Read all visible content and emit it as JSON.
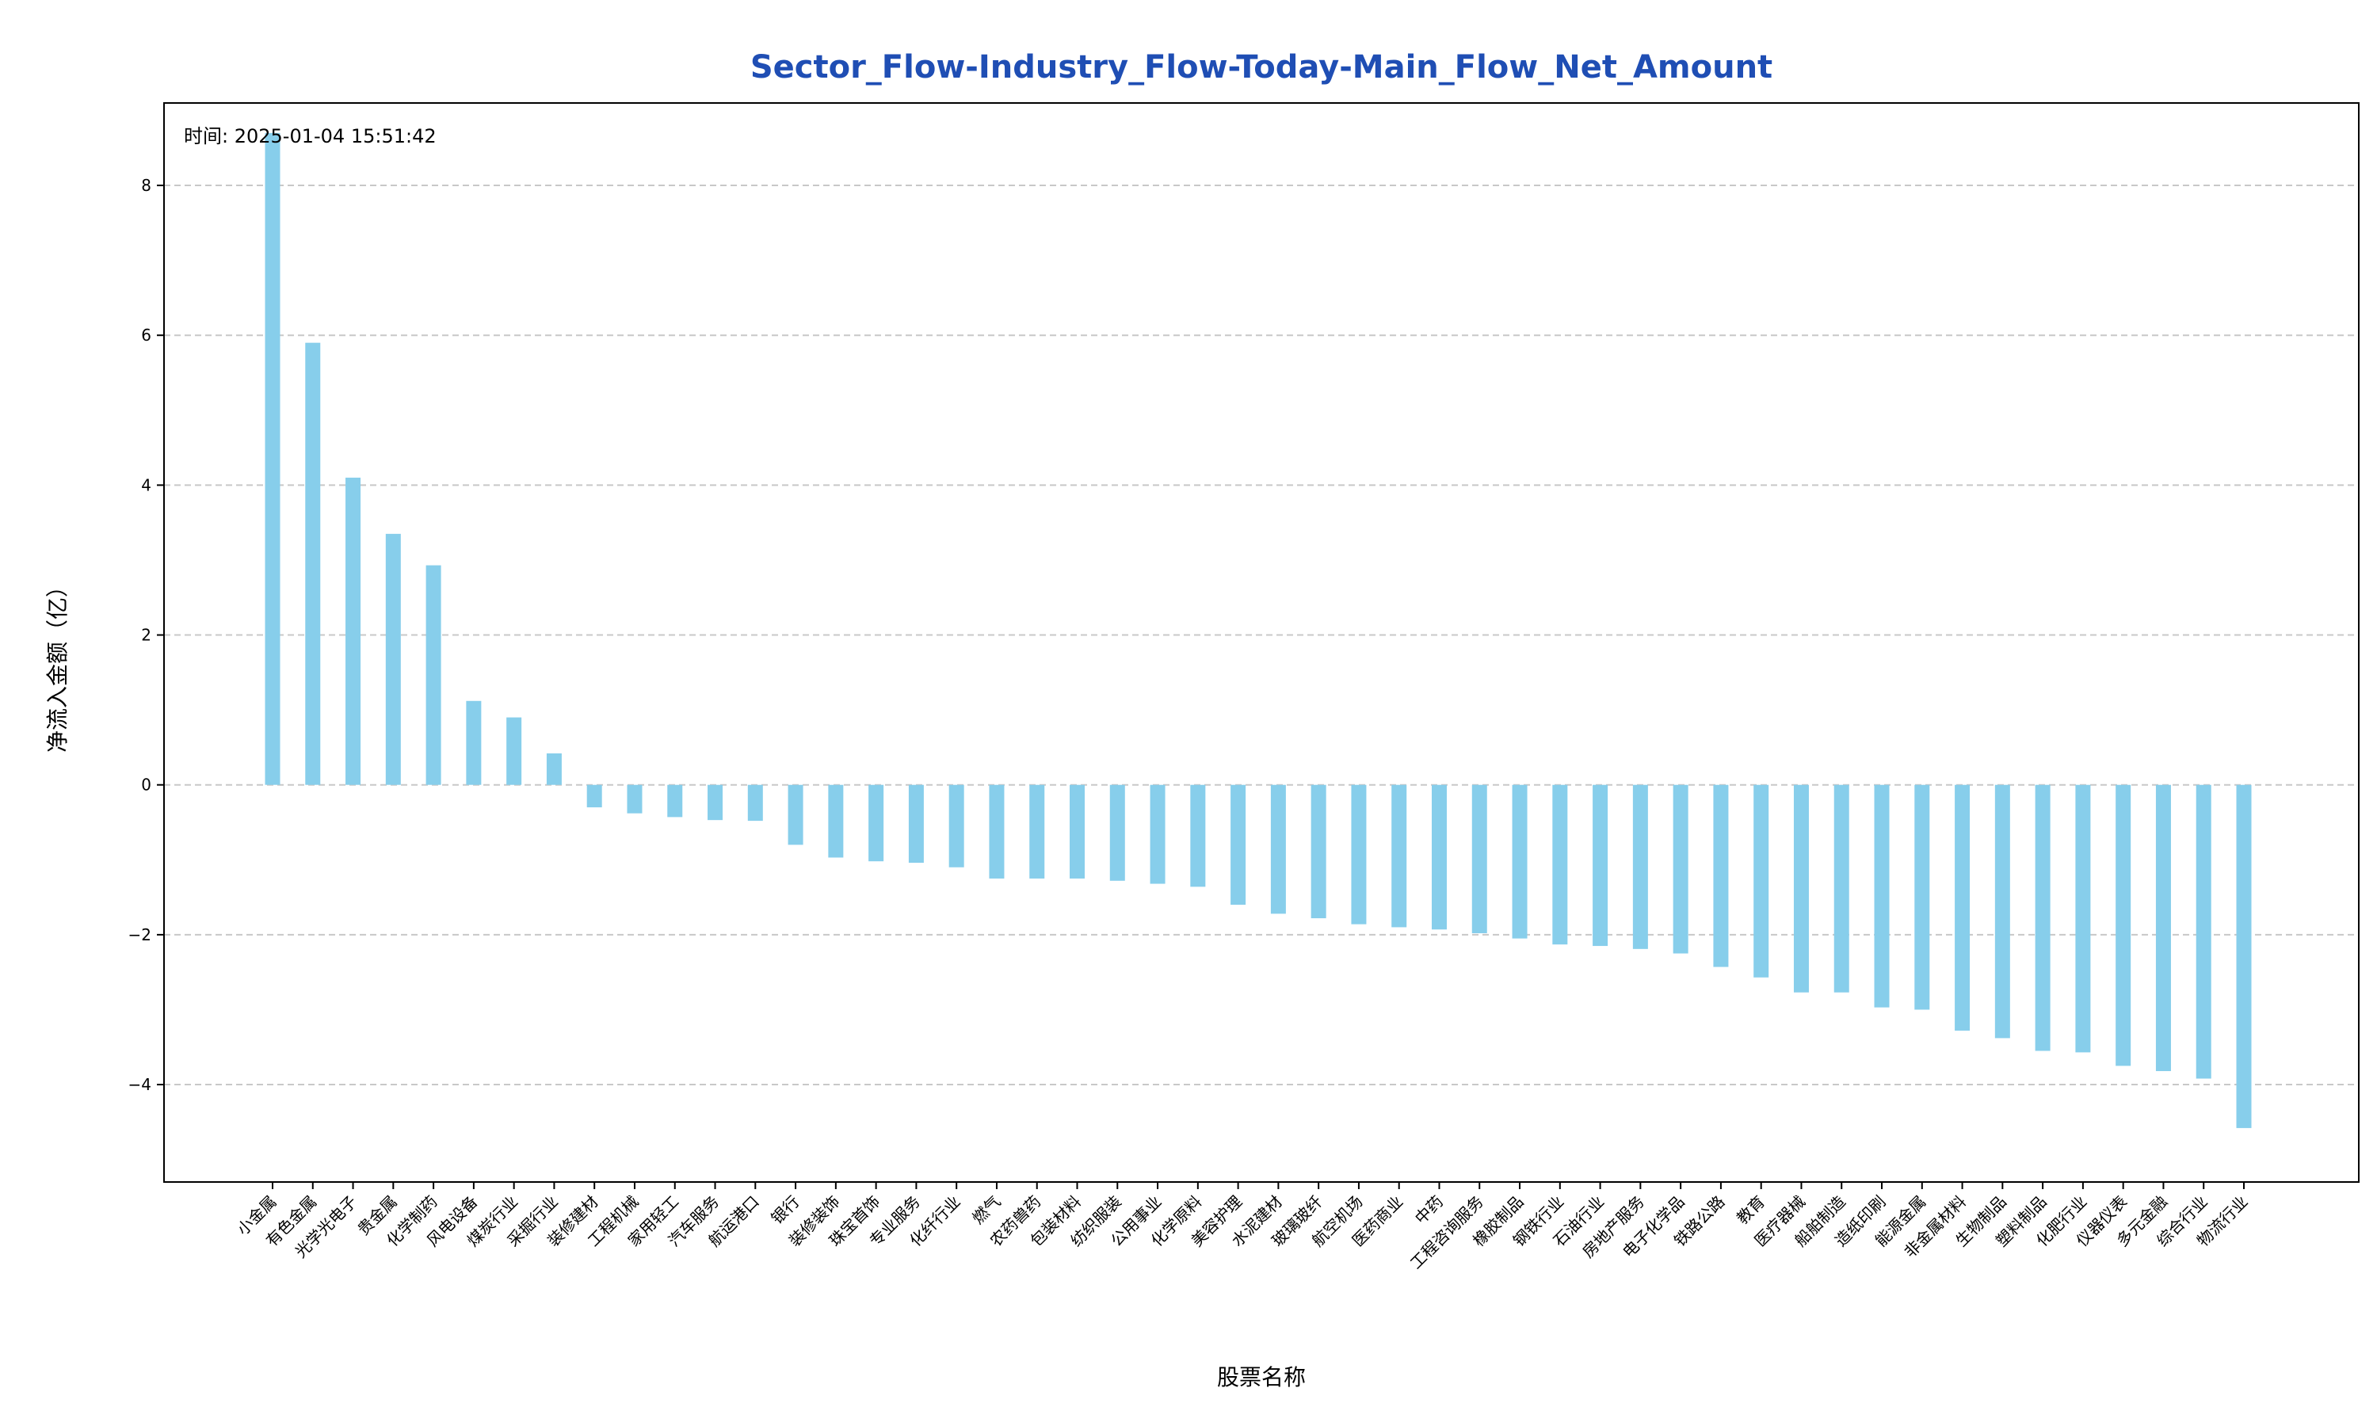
{
  "chart_data": {
    "type": "bar",
    "title": "Sector_Flow-Industry_Flow-Today-Main_Flow_Net_Amount",
    "xlabel": "股票名称",
    "ylabel": "净流入金额（亿）",
    "annotation": "时间: 2025-01-04 15:51:42",
    "ylim": [
      -5.3,
      9.1
    ],
    "yticks": [
      -4,
      -2,
      0,
      2,
      4,
      6,
      8
    ],
    "ytick_labels": [
      "−4",
      "−2",
      "0",
      "2",
      "4",
      "6",
      "8"
    ],
    "grid": "y-dashed",
    "colors": {
      "bar": "#87CEEB",
      "title": "#1f4eb4",
      "grid": "#c8c8c8",
      "axis": "#000000"
    },
    "categories": [
      "小金属",
      "有色金属",
      "光学光电子",
      "贵金属",
      "化学制药",
      "风电设备",
      "煤炭行业",
      "采掘行业",
      "装修建材",
      "工程机械",
      "家用轻工",
      "汽车服务",
      "航运港口",
      "银行",
      "装修装饰",
      "珠宝首饰",
      "专业服务",
      "化纤行业",
      "燃气",
      "农药兽药",
      "包装材料",
      "纺织服装",
      "公用事业",
      "化学原料",
      "美容护理",
      "水泥建材",
      "玻璃玻纤",
      "航空机场",
      "医药商业",
      "中药",
      "工程咨询服务",
      "橡胶制品",
      "钢铁行业",
      "石油行业",
      "房地产服务",
      "电子化学品",
      "铁路公路",
      "教育",
      "医疗器械",
      "船舶制造",
      "造纸印刷",
      "能源金属",
      "非金属材料",
      "生物制品",
      "塑料制品",
      "化肥行业",
      "仪器仪表",
      "多元金融",
      "综合行业",
      "物流行业"
    ],
    "values": [
      8.7,
      5.9,
      4.1,
      3.35,
      2.93,
      1.12,
      0.9,
      0.42,
      -0.3,
      -0.38,
      -0.43,
      -0.47,
      -0.48,
      -0.8,
      -0.97,
      -1.02,
      -1.04,
      -1.1,
      -1.25,
      -1.25,
      -1.25,
      -1.28,
      -1.32,
      -1.36,
      -1.6,
      -1.72,
      -1.78,
      -1.86,
      -1.9,
      -1.93,
      -1.98,
      -2.05,
      -2.13,
      -2.15,
      -2.19,
      -2.25,
      -2.43,
      -2.57,
      -2.77,
      -2.77,
      -2.97,
      -3.0,
      -3.28,
      -3.38,
      -3.55,
      -3.57,
      -3.75,
      -3.82,
      -3.92,
      -4.58
    ]
  }
}
